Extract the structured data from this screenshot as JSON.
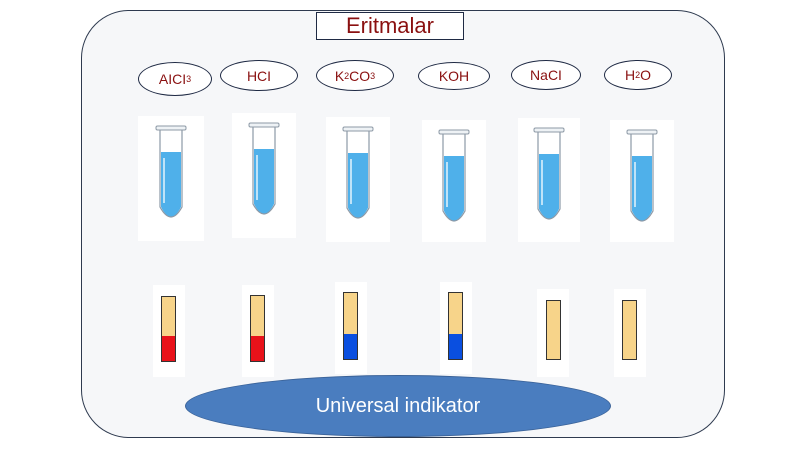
{
  "title": "Eritmalar",
  "solutions": [
    {
      "main": "AICI",
      "sub": " 3",
      "tail": "",
      "sub2": "",
      "tail2": "",
      "indicator_color": "#e8121a"
    },
    {
      "main": "HCI",
      "sub": "",
      "tail": "",
      "sub2": "",
      "tail2": "",
      "indicator_color": "#e8121a"
    },
    {
      "main": "K",
      "sub": "2",
      "tail": "CO",
      "sub2": "3",
      "tail2": "",
      "indicator_color": "#0a4fe0"
    },
    {
      "main": "KOH",
      "sub": "",
      "tail": "",
      "sub2": "",
      "tail2": "",
      "indicator_color": "#0a4fe0"
    },
    {
      "main": "NaCI",
      "sub": "",
      "tail": "",
      "sub2": "",
      "tail2": "",
      "indicator_color": "#f7d48a"
    },
    {
      "main": "H",
      "sub": "2",
      "tail": "O",
      "sub2": "",
      "tail2": "",
      "indicator_color": "#f7d48a"
    }
  ],
  "indicator_label": "Universal indikator",
  "colors": {
    "label_text": "#8a1010",
    "liquid": "#4fb0ea",
    "strip_base": "#f7d48a",
    "base_fill": "#4a7dbf"
  }
}
